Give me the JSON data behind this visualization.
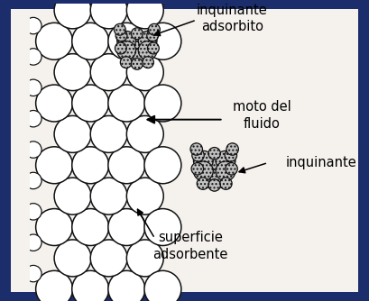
{
  "bg_color": "#1c2d6b",
  "inner_bg": "#f5f2ee",
  "border_width": 5,
  "label_fontsize": 10.5,
  "circle_edge_color": "#111111",
  "circle_face_color": "#ffffff",
  "pollutant_face_color": "#c0c0c0",
  "pollutant_hatch": "....",
  "labels": {
    "inquinante_adsorbito": "inquinante\nadsorbito",
    "moto_del_fluido": "moto del\nfluido",
    "inquinante": "inquinante",
    "superficie_adsorbente": "superficie\nadsorbente"
  },
  "figsize": [
    4.09,
    3.34
  ],
  "dpi": 100
}
